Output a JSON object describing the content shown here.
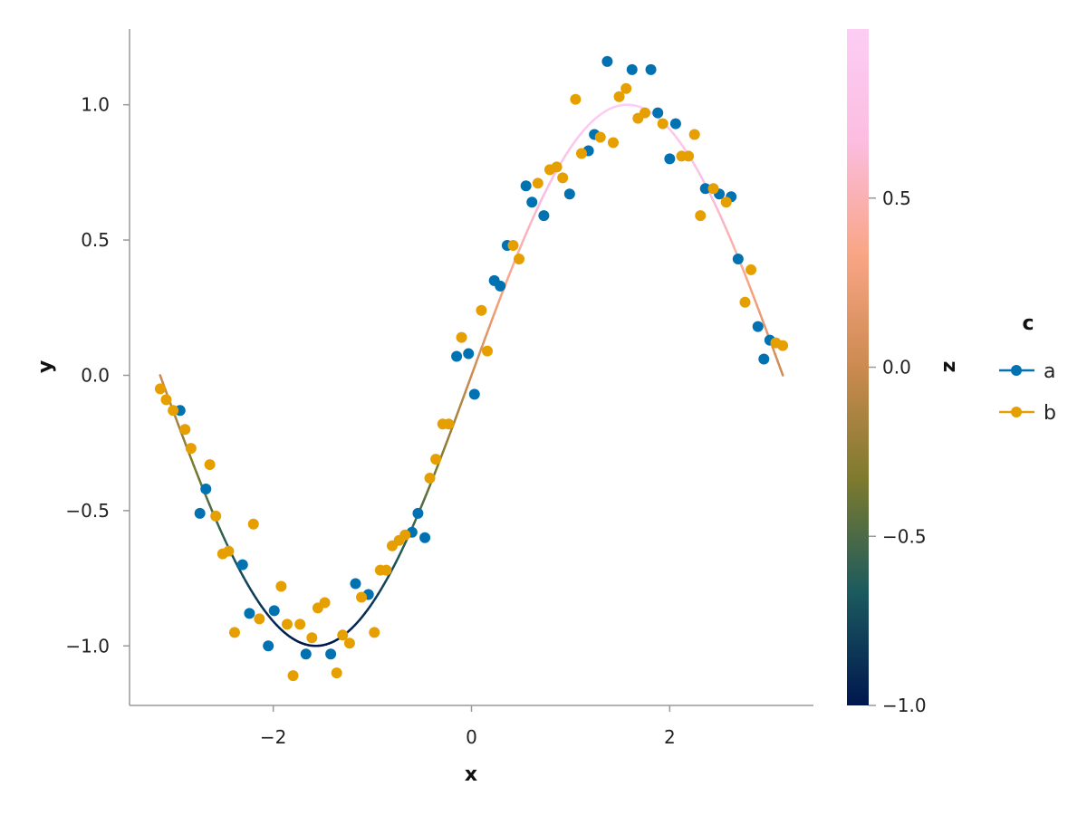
{
  "chart_data": {
    "type": "scatter",
    "xlabel": "x",
    "ylabel": "y",
    "xlim": [
      -3.45,
      3.45
    ],
    "ylim": [
      -1.22,
      1.28
    ],
    "x_ticks": [
      -2,
      0,
      2
    ],
    "x_tick_labels": [
      "−2",
      "0",
      "2"
    ],
    "y_ticks": [
      -1.0,
      -0.5,
      0.0,
      0.5,
      1.0
    ],
    "y_tick_labels": [
      "−1.0",
      "−0.5",
      "0.0",
      "0.5",
      "1.0"
    ],
    "grid": false,
    "line": {
      "function": "sin(x)",
      "x_range": [
        -3.1416,
        3.1416
      ],
      "color_by": "z",
      "z_function": "sin(x)"
    },
    "colorbar": {
      "label": "z",
      "range": [
        -1.0,
        1.0
      ],
      "ticks": [
        -1.0,
        -0.5,
        0.0,
        0.5
      ],
      "tick_labels": [
        "−1.0",
        "−0.5",
        "0.0",
        "0.5"
      ],
      "colormap": [
        "#00174f",
        "#1b5a5e",
        "#7d7a2e",
        "#cc8a50",
        "#f9a585",
        "#fbbde0",
        "#fdcdf5"
      ]
    },
    "legend": {
      "title": "c",
      "position": "right",
      "entries": [
        {
          "label": "a",
          "color": "#0072b2"
        },
        {
          "label": "b",
          "color": "#e69f00"
        }
      ]
    },
    "series": [
      {
        "name": "a",
        "color": "#0072b2",
        "points": [
          [
            -2.94,
            -0.13
          ],
          [
            -2.74,
            -0.51
          ],
          [
            -2.68,
            -0.42
          ],
          [
            -2.31,
            -0.7
          ],
          [
            -2.24,
            -0.88
          ],
          [
            -2.05,
            -1.0
          ],
          [
            -1.99,
            -0.87
          ],
          [
            -1.67,
            -1.03
          ],
          [
            -1.42,
            -1.03
          ],
          [
            -1.17,
            -0.77
          ],
          [
            -1.04,
            -0.81
          ],
          [
            -0.6,
            -0.58
          ],
          [
            -0.54,
            -0.51
          ],
          [
            -0.47,
            -0.6
          ],
          [
            -0.15,
            0.07
          ],
          [
            -0.03,
            0.08
          ],
          [
            0.03,
            -0.07
          ],
          [
            0.23,
            0.35
          ],
          [
            0.29,
            0.33
          ],
          [
            0.36,
            0.48
          ],
          [
            0.55,
            0.7
          ],
          [
            0.61,
            0.64
          ],
          [
            0.73,
            0.59
          ],
          [
            0.99,
            0.67
          ],
          [
            1.18,
            0.83
          ],
          [
            1.24,
            0.89
          ],
          [
            1.37,
            1.16
          ],
          [
            1.62,
            1.13
          ],
          [
            1.81,
            1.13
          ],
          [
            1.88,
            0.97
          ],
          [
            2.0,
            0.8
          ],
          [
            2.06,
            0.93
          ],
          [
            2.36,
            0.69
          ],
          [
            2.5,
            0.67
          ],
          [
            2.62,
            0.66
          ],
          [
            2.69,
            0.43
          ],
          [
            2.89,
            0.18
          ],
          [
            2.95,
            0.06
          ],
          [
            3.01,
            0.13
          ]
        ]
      },
      {
        "name": "b",
        "color": "#e69f00",
        "points": [
          [
            -3.14,
            -0.05
          ],
          [
            -3.08,
            -0.09
          ],
          [
            -3.01,
            -0.13
          ],
          [
            -2.89,
            -0.2
          ],
          [
            -2.83,
            -0.27
          ],
          [
            -2.64,
            -0.33
          ],
          [
            -2.58,
            -0.52
          ],
          [
            -2.51,
            -0.66
          ],
          [
            -2.45,
            -0.65
          ],
          [
            -2.39,
            -0.95
          ],
          [
            -2.2,
            -0.55
          ],
          [
            -2.14,
            -0.9
          ],
          [
            -1.92,
            -0.78
          ],
          [
            -1.86,
            -0.92
          ],
          [
            -1.8,
            -1.11
          ],
          [
            -1.73,
            -0.92
          ],
          [
            -1.61,
            -0.97
          ],
          [
            -1.55,
            -0.86
          ],
          [
            -1.48,
            -0.84
          ],
          [
            -1.36,
            -1.1
          ],
          [
            -1.3,
            -0.96
          ],
          [
            -1.23,
            -0.99
          ],
          [
            -1.11,
            -0.82
          ],
          [
            -0.98,
            -0.95
          ],
          [
            -0.92,
            -0.72
          ],
          [
            -0.86,
            -0.72
          ],
          [
            -0.8,
            -0.63
          ],
          [
            -0.73,
            -0.61
          ],
          [
            -0.67,
            -0.59
          ],
          [
            -0.42,
            -0.38
          ],
          [
            -0.36,
            -0.31
          ],
          [
            -0.29,
            -0.18
          ],
          [
            -0.23,
            -0.18
          ],
          [
            -0.1,
            0.14
          ],
          [
            0.1,
            0.24
          ],
          [
            0.16,
            0.09
          ],
          [
            0.42,
            0.48
          ],
          [
            0.48,
            0.43
          ],
          [
            0.67,
            0.71
          ],
          [
            0.79,
            0.76
          ],
          [
            0.86,
            0.77
          ],
          [
            0.92,
            0.73
          ],
          [
            1.05,
            1.02
          ],
          [
            1.11,
            0.82
          ],
          [
            1.3,
            0.88
          ],
          [
            1.43,
            0.86
          ],
          [
            1.49,
            1.03
          ],
          [
            1.56,
            1.06
          ],
          [
            1.68,
            0.95
          ],
          [
            1.75,
            0.97
          ],
          [
            1.93,
            0.93
          ],
          [
            2.12,
            0.81
          ],
          [
            2.19,
            0.81
          ],
          [
            2.25,
            0.89
          ],
          [
            2.31,
            0.59
          ],
          [
            2.44,
            0.69
          ],
          [
            2.57,
            0.64
          ],
          [
            2.76,
            0.27
          ],
          [
            2.82,
            0.39
          ],
          [
            3.07,
            0.12
          ],
          [
            3.14,
            0.11
          ]
        ]
      }
    ]
  }
}
